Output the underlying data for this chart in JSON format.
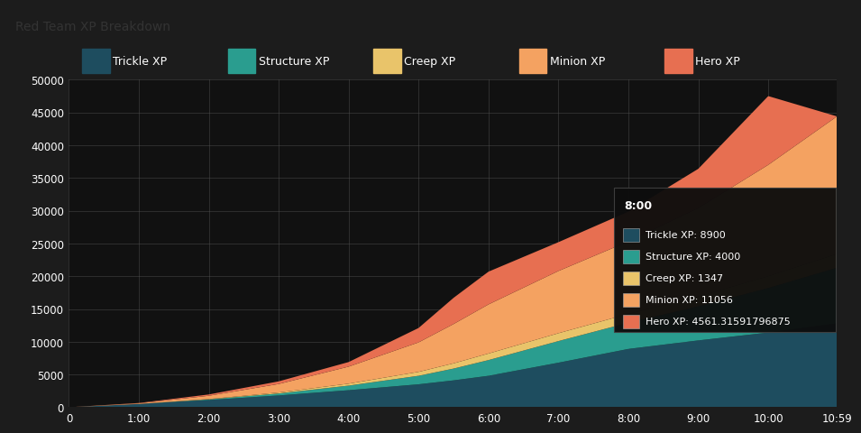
{
  "title": "Red Team XP Breakdown",
  "title_bar_bg": "#d4d4d4",
  "title_color": "#333333",
  "plot_bg": "#111111",
  "fig_bg": "#1c1c1c",
  "legend_bg": "#1c1c1c",
  "grid_color": "#555555",
  "text_color": "#ffffff",
  "x_max_minutes": 659,
  "y_max": 50000,
  "y_ticks": [
    0,
    5000,
    10000,
    15000,
    20000,
    25000,
    30000,
    35000,
    40000,
    45000,
    50000
  ],
  "x_tick_minutes": [
    0,
    60,
    120,
    180,
    240,
    300,
    360,
    420,
    480,
    540,
    600,
    659
  ],
  "x_tick_labels": [
    "0",
    "1:00",
    "2:00",
    "3:00",
    "4:00",
    "5:00",
    "6:00",
    "7:00",
    "8:00",
    "9:00",
    "10:00",
    "10:59"
  ],
  "colors": {
    "Trickle XP": "#1e4d5f",
    "Structure XP": "#2a9d8f",
    "Creep XP": "#e9c46a",
    "Minion XP": "#f4a261",
    "Hero XP": "#e76f51"
  },
  "tooltip": {
    "time_label": "8:00",
    "x_min": 480,
    "entries": [
      [
        "Trickle XP",
        "Trickle XP: 8900",
        "#1e4d5f"
      ],
      [
        "Structure XP",
        "Structure XP: 4000",
        "#2a9d8f"
      ],
      [
        "Creep XP",
        "Creep XP: 1347",
        "#e9c46a"
      ],
      [
        "Minion XP",
        "Minion XP: 11056",
        "#f4a261"
      ],
      [
        "Hero XP",
        "Hero XP: 4561.31591796875",
        "#e76f51"
      ]
    ]
  },
  "knots": {
    "t": [
      0,
      60,
      120,
      180,
      240,
      300,
      330,
      360,
      420,
      480,
      540,
      600,
      659
    ],
    "Trickle XP": [
      0,
      500,
      1100,
      1800,
      2600,
      3500,
      4100,
      4800,
      6800,
      8900,
      10200,
      11400,
      12800
    ],
    "Structure XP": [
      0,
      0,
      100,
      300,
      700,
      1300,
      1800,
      2400,
      3300,
      4000,
      5200,
      6800,
      8500
    ],
    "Creep XP": [
      0,
      0,
      50,
      150,
      300,
      600,
      800,
      1000,
      1200,
      1347,
      1500,
      1800,
      2100
    ],
    "Minion XP": [
      0,
      100,
      500,
      1300,
      2600,
      4500,
      6000,
      7500,
      9500,
      11056,
      13500,
      17000,
      21000
    ],
    "Hero XP": [
      0,
      50,
      200,
      400,
      700,
      2200,
      4000,
      5000,
      4400,
      4561,
      6000,
      10500,
      0
    ]
  }
}
